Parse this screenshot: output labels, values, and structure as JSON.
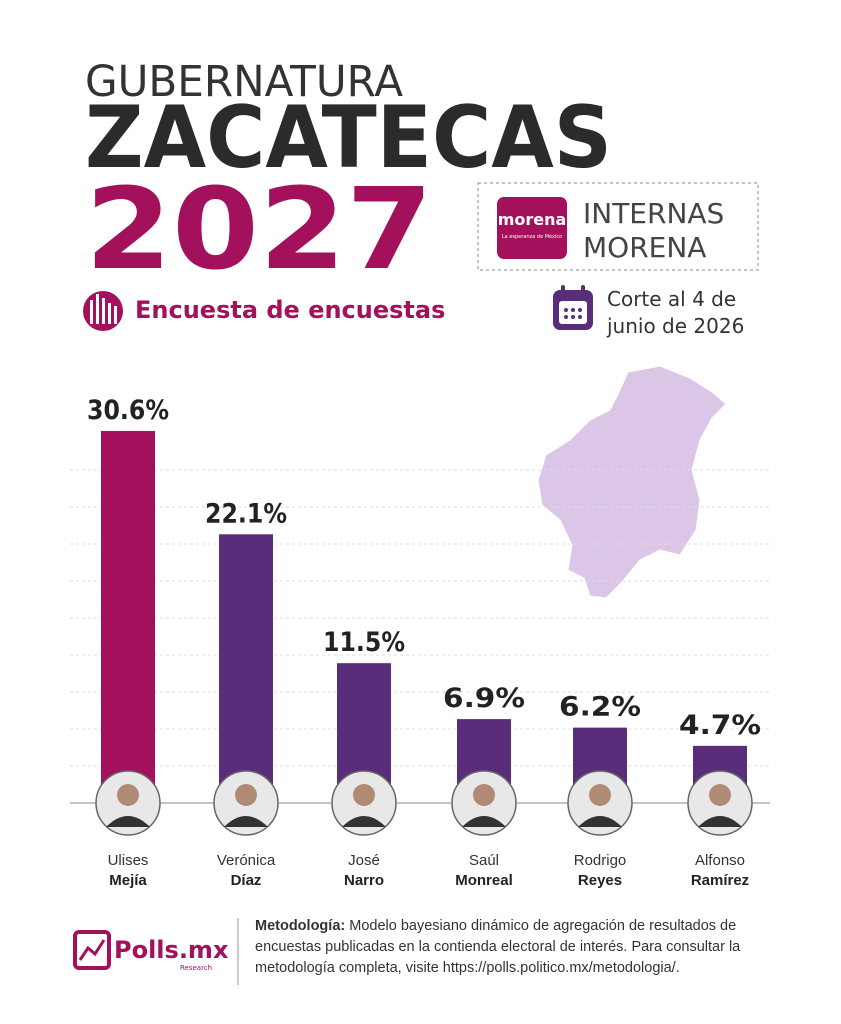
{
  "header": {
    "kicker": "GUBERNATURA",
    "state": "ZACATECAS",
    "year": "2027",
    "subtitle": "Encuesta de encuestas",
    "party_logo": "morena",
    "party_tagline": "La esperanza de México",
    "contest": [
      "INTERNAS",
      "MORENA"
    ],
    "cutoff": [
      "Corte al 4 de",
      "junio de 2026"
    ]
  },
  "chart_data": {
    "type": "bar",
    "categories": [
      [
        "Ulises",
        "Mejía"
      ],
      [
        "Verónica",
        "Díaz"
      ],
      [
        "José",
        "Narro"
      ],
      [
        "Saúl",
        "Monreal"
      ],
      [
        "Rodrigo",
        "Reyes"
      ],
      [
        "Alfonso",
        "Ramírez"
      ]
    ],
    "values": [
      30.6,
      22.1,
      11.5,
      6.9,
      6.2,
      4.7
    ],
    "value_labels": [
      "30.6%",
      "22.1%",
      "11.5%",
      "6.9%",
      "6.2%",
      "4.7%"
    ],
    "colors": [
      "#a3105c",
      "#5a2d7a",
      "#5a2d7a",
      "#5a2d7a",
      "#5a2d7a",
      "#5a2d7a"
    ],
    "ylim": [
      0,
      31.5
    ],
    "grid": true
  },
  "footer": {
    "brand": "Polls.mx",
    "brand_sub": "Research",
    "method_label": "Metodología:",
    "method_text": "Modelo bayesiano dinámico de agregación de resultados de encuestas publicadas en la contienda electoral de interés. Para consultar la metodología completa, visite https://polls.politico.mx/metodologia/."
  }
}
